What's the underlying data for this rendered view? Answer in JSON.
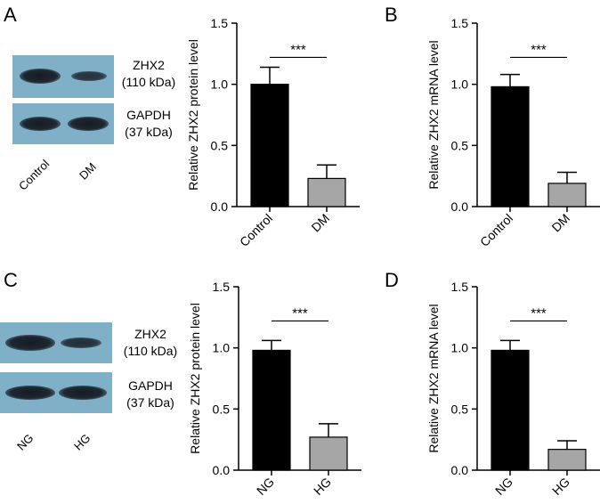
{
  "panels": [
    {
      "letter": "A",
      "blot": {
        "bands": [
          {
            "label_line1": "ZHX2",
            "label_line2": "(110 kDa)",
            "intensity": [
              1.0,
              0.55
            ]
          },
          {
            "label_line1": "GAPDH",
            "label_line2": "(37 kDa)",
            "intensity": [
              0.9,
              0.9
            ]
          }
        ],
        "lanes": [
          "Control",
          "DM"
        ]
      }
    },
    {
      "letter": "B"
    },
    {
      "letter": "C",
      "blot": {
        "bands": [
          {
            "label_line1": "ZHX2",
            "label_line2": "(110 kDa)",
            "intensity": [
              1.0,
              0.6
            ]
          },
          {
            "label_line1": "GAPDH",
            "label_line2": "(37 kDa)",
            "intensity": [
              0.9,
              0.9
            ]
          }
        ],
        "lanes": [
          "NG",
          "HG"
        ]
      }
    },
    {
      "letter": "D"
    }
  ],
  "chart_data": [
    {
      "type": "bar",
      "panel": "A",
      "ylabel": "Relative ZHX2 protein level",
      "categories": [
        "Control",
        "DM"
      ],
      "values": [
        1.0,
        0.23
      ],
      "errors": [
        0.14,
        0.11
      ],
      "ylim": [
        0,
        1.5
      ],
      "yticks": [
        "0.0",
        "0.5",
        "1.0",
        "1.5"
      ],
      "significance": "***",
      "colors": [
        "#000000",
        "#a6a6a6"
      ]
    },
    {
      "type": "bar",
      "panel": "B",
      "ylabel": "Relative ZHX2 mRNA level",
      "categories": [
        "Control",
        "DM"
      ],
      "values": [
        0.98,
        0.19
      ],
      "errors": [
        0.1,
        0.09
      ],
      "ylim": [
        0,
        1.5
      ],
      "yticks": [
        "0.0",
        "0.5",
        "1.0",
        "1.5"
      ],
      "significance": "***",
      "colors": [
        "#000000",
        "#a6a6a6"
      ]
    },
    {
      "type": "bar",
      "panel": "C",
      "ylabel": "Relative ZHX2 protein level",
      "categories": [
        "NG",
        "HG"
      ],
      "values": [
        0.98,
        0.27
      ],
      "errors": [
        0.08,
        0.11
      ],
      "ylim": [
        0,
        1.5
      ],
      "yticks": [
        "0.0",
        "0.5",
        "1.0",
        "1.5"
      ],
      "significance": "***",
      "colors": [
        "#000000",
        "#a6a6a6"
      ]
    },
    {
      "type": "bar",
      "panel": "D",
      "ylabel": "Relative ZHX2 mRNA level",
      "categories": [
        "NG",
        "HG"
      ],
      "values": [
        0.98,
        0.17
      ],
      "errors": [
        0.08,
        0.07
      ],
      "ylim": [
        0,
        1.5
      ],
      "yticks": [
        "0.0",
        "0.5",
        "1.0",
        "1.5"
      ],
      "significance": "***",
      "colors": [
        "#000000",
        "#a6a6a6"
      ]
    }
  ]
}
